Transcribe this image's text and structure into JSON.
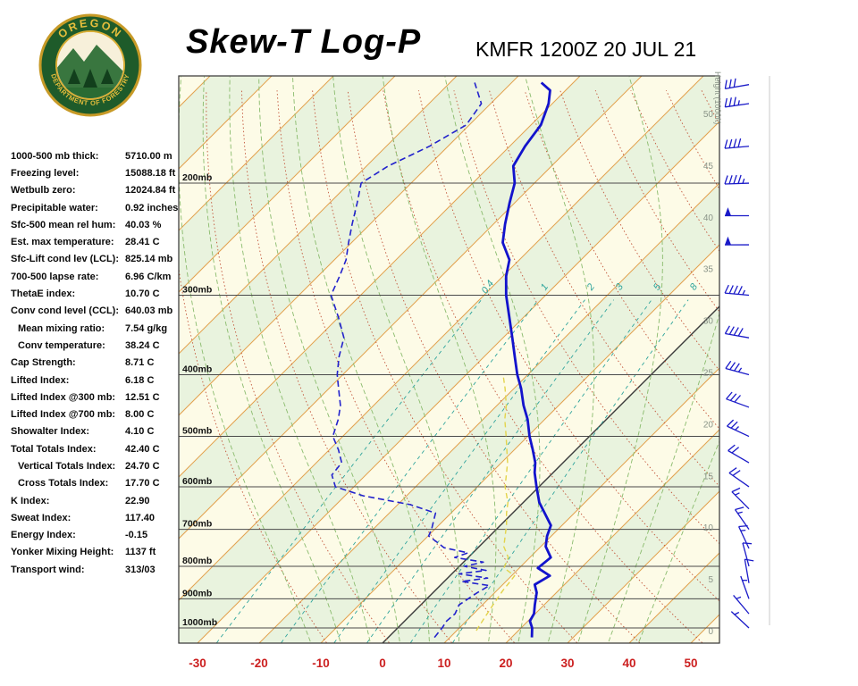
{
  "header": {
    "title": "Skew-T Log-P",
    "station": "KMFR 1200Z 20 JUL 21",
    "logo": {
      "top": "OREGON",
      "bottom": "DEPARTMENT OF FORESTRY"
    }
  },
  "indices": [
    {
      "label": "1000-500 mb thick:",
      "value": "5710.00 m",
      "indent": false
    },
    {
      "label": "Freezing level:",
      "value": "15088.18 ft",
      "indent": false
    },
    {
      "label": "Wetbulb zero:",
      "value": "12024.84 ft",
      "indent": false
    },
    {
      "label": "Precipitable water:",
      "value": "0.92 inches",
      "indent": false
    },
    {
      "label": "Sfc-500 mean rel hum:",
      "value": "40.03 %",
      "indent": false
    },
    {
      "label": "Est. max temperature:",
      "value": "28.41 C",
      "indent": false
    },
    {
      "label": "Sfc-Lift cond lev (LCL):",
      "value": "825.14 mb",
      "indent": false
    },
    {
      "label": "700-500 lapse rate:",
      "value": "6.96 C/km",
      "indent": false
    },
    {
      "label": "ThetaE index:",
      "value": "10.70 C",
      "indent": false
    },
    {
      "label": "Conv cond level (CCL):",
      "value": "640.03 mb",
      "indent": false
    },
    {
      "label": "Mean mixing ratio:",
      "value": "7.54 g/kg",
      "indent": true
    },
    {
      "label": "Conv temperature:",
      "value": "38.24 C",
      "indent": true
    },
    {
      "label": "Cap Strength:",
      "value": "8.71 C",
      "indent": false
    },
    {
      "label": "Lifted Index:",
      "value": "6.18 C",
      "indent": false
    },
    {
      "label": "Lifted Index @300 mb:",
      "value": "12.51 C",
      "indent": false
    },
    {
      "label": "Lifted Index @700 mb:",
      "value": "8.00 C",
      "indent": false
    },
    {
      "label": "Showalter Index:",
      "value": "4.10 C",
      "indent": false
    },
    {
      "label": "Total Totals Index:",
      "value": "42.40 C",
      "indent": false
    },
    {
      "label": "Vertical Totals Index:",
      "value": "24.70 C",
      "indent": true
    },
    {
      "label": "Cross Totals Index:",
      "value": "17.70 C",
      "indent": true
    },
    {
      "label": "K Index:",
      "value": "22.90",
      "indent": false
    },
    {
      "label": "Sweat Index:",
      "value": "117.40",
      "indent": false
    },
    {
      "label": "Energy Index:",
      "value": "-0.15",
      "indent": false
    },
    {
      "label": "Yonker Mixing Height:",
      "value": "1137 ft",
      "indent": false
    },
    {
      "label": "Transport wind:",
      "value": "313/03",
      "indent": false
    }
  ],
  "chart_data": {
    "type": "skewt-log-p",
    "title": "Skew-T Log-P",
    "station": "KMFR",
    "valid": "1200Z 20 JUL 21",
    "x_axis": {
      "unit": "C",
      "ticks": [
        -30,
        -20,
        -10,
        0,
        10,
        20,
        30,
        40,
        50
      ]
    },
    "pressure_levels_mb": [
      200,
      300,
      400,
      500,
      600,
      700,
      800,
      900,
      1000
    ],
    "pressure_label_suffix": "mb",
    "height_axis": {
      "label": "Height (1000ft)",
      "ticks": [
        50,
        45,
        40,
        35,
        30,
        25,
        20,
        15,
        10,
        5,
        0
      ]
    },
    "mixing_ratio_lines_gkg": [
      0.4,
      1,
      2,
      3,
      5,
      8
    ],
    "moist_adiabats_c": [
      -15,
      -10,
      -5,
      0,
      5,
      10,
      15,
      20,
      25,
      30,
      35,
      40
    ],
    "dry_adiabats_k": {
      "min": 260,
      "max": 460,
      "step": 10
    },
    "isotherms_c": {
      "min": -130,
      "max": 60,
      "step": 10,
      "highlight": 0
    },
    "temperature_profile": {
      "p": [
        1035,
        1000,
        975,
        950,
        920,
        880,
        855,
        828,
        805,
        775,
        745,
        717,
        690,
        660,
        635,
        600,
        570,
        550,
        525,
        500,
        470,
        447,
        420,
        400,
        375,
        350,
        325,
        300,
        280,
        264,
        248,
        232,
        215,
        200,
        188,
        175,
        162,
        150,
        143,
        139
      ],
      "t": [
        23.3,
        21.8,
        20.3,
        19.8,
        18.5,
        16.8,
        15.2,
        16.2,
        13.0,
        13.4,
        10.8,
        9.3,
        8.2,
        5.2,
        2.6,
        -0.4,
        -3.0,
        -4.5,
        -7.0,
        -9.7,
        -12.8,
        -15.7,
        -18.9,
        -21.7,
        -25.0,
        -28.5,
        -32.3,
        -36.4,
        -39.5,
        -41.6,
        -45.5,
        -48.1,
        -50.8,
        -53.2,
        -56.2,
        -57.5,
        -58.4,
        -60.6,
        -62.5,
        -65.2
      ]
    },
    "dewpoint_profile": {
      "p": [
        1035,
        1000,
        975,
        950,
        920,
        880,
        858,
        845,
        835,
        822,
        812,
        800,
        788,
        775,
        762,
        748,
        730,
        717,
        700,
        680,
        660,
        640,
        620,
        600,
        575,
        550,
        525,
        500,
        470,
        447,
        420,
        400,
        375,
        350,
        325,
        300,
        280,
        264,
        248,
        232,
        215,
        200,
        188,
        175,
        162,
        150,
        139
      ],
      "t": [
        7.5,
        7.2,
        6.8,
        7.0,
        6.2,
        7.2,
        8.0,
        2.8,
        6.5,
        1.2,
        5.0,
        0.8,
        3.2,
        -2.2,
        -0.8,
        -5.5,
        -8.0,
        -9.9,
        -10.5,
        -11.5,
        -12.5,
        -18.0,
        -27.0,
        -33.0,
        -35.5,
        -35.9,
        -38.5,
        -41.6,
        -43.5,
        -45.4,
        -48.5,
        -50.9,
        -53.5,
        -55.8,
        -60.0,
        -64.8,
        -66.5,
        -68.1,
        -70.5,
        -72.9,
        -75.5,
        -78.1,
        -76.5,
        -73.0,
        -70.5,
        -71.5,
        -76.0
      ]
    },
    "wetbulb_profile": {
      "p": [
        1010,
        1000,
        975,
        950,
        925,
        900,
        875,
        855,
        828,
        805,
        775,
        745,
        717,
        690,
        660,
        635,
        600,
        575,
        550,
        525,
        500,
        470,
        447,
        420,
        400
      ],
      "t": [
        13.2,
        13.0,
        12.6,
        12.2,
        11.8,
        11.4,
        11.0,
        10.8,
        10.5,
        7.5,
        6.5,
        4.0,
        2.5,
        1.0,
        -1.0,
        -2.5,
        -5.5,
        -7.2,
        -9.0,
        -11.2,
        -13.5,
        -16.5,
        -18.5,
        -21.5,
        -24.0
      ]
    },
    "winds": [
      {
        "p": 1000,
        "dir": 313,
        "spd": 3
      },
      {
        "p": 950,
        "dir": 320,
        "spd": 5
      },
      {
        "p": 900,
        "dir": 340,
        "spd": 5
      },
      {
        "p": 850,
        "dir": 350,
        "spd": 10
      },
      {
        "p": 800,
        "dir": 345,
        "spd": 10
      },
      {
        "p": 750,
        "dir": 335,
        "spd": 15
      },
      {
        "p": 700,
        "dir": 325,
        "spd": 15
      },
      {
        "p": 650,
        "dir": 315,
        "spd": 15
      },
      {
        "p": 600,
        "dir": 305,
        "spd": 20
      },
      {
        "p": 550,
        "dir": 300,
        "spd": 20
      },
      {
        "p": 500,
        "dir": 295,
        "spd": 25
      },
      {
        "p": 450,
        "dir": 290,
        "spd": 30
      },
      {
        "p": 400,
        "dir": 285,
        "spd": 35
      },
      {
        "p": 350,
        "dir": 280,
        "spd": 40
      },
      {
        "p": 300,
        "dir": 275,
        "spd": 45
      },
      {
        "p": 250,
        "dir": 270,
        "spd": 50
      },
      {
        "p": 225,
        "dir": 270,
        "spd": 50
      },
      {
        "p": 200,
        "dir": 268,
        "spd": 45
      },
      {
        "p": 175,
        "dir": 265,
        "spd": 40
      },
      {
        "p": 150,
        "dir": 262,
        "spd": 35
      },
      {
        "p": 140,
        "dir": 260,
        "spd": 30
      }
    ],
    "colors": {
      "band_green": "#E9F3DE",
      "band_cream": "#FDFBE7",
      "isotherm": "#E2A14E",
      "isotherm_zero": "#3A3A3A",
      "dry_adiabat": "#C2553A",
      "moist_adiabat": "#8ABB6D",
      "mixing_ratio": "#2FA49C",
      "pressure_line": "#4A4A4A",
      "temperature_line": "#1313CC",
      "dewpoint_line": "#2222CC",
      "wetbulb_line": "#E3D44C",
      "axis_tick": "#CC2020",
      "height_label": "#8A9488",
      "wind_barb": "#1A1AC8",
      "frame": "#333333"
    }
  }
}
